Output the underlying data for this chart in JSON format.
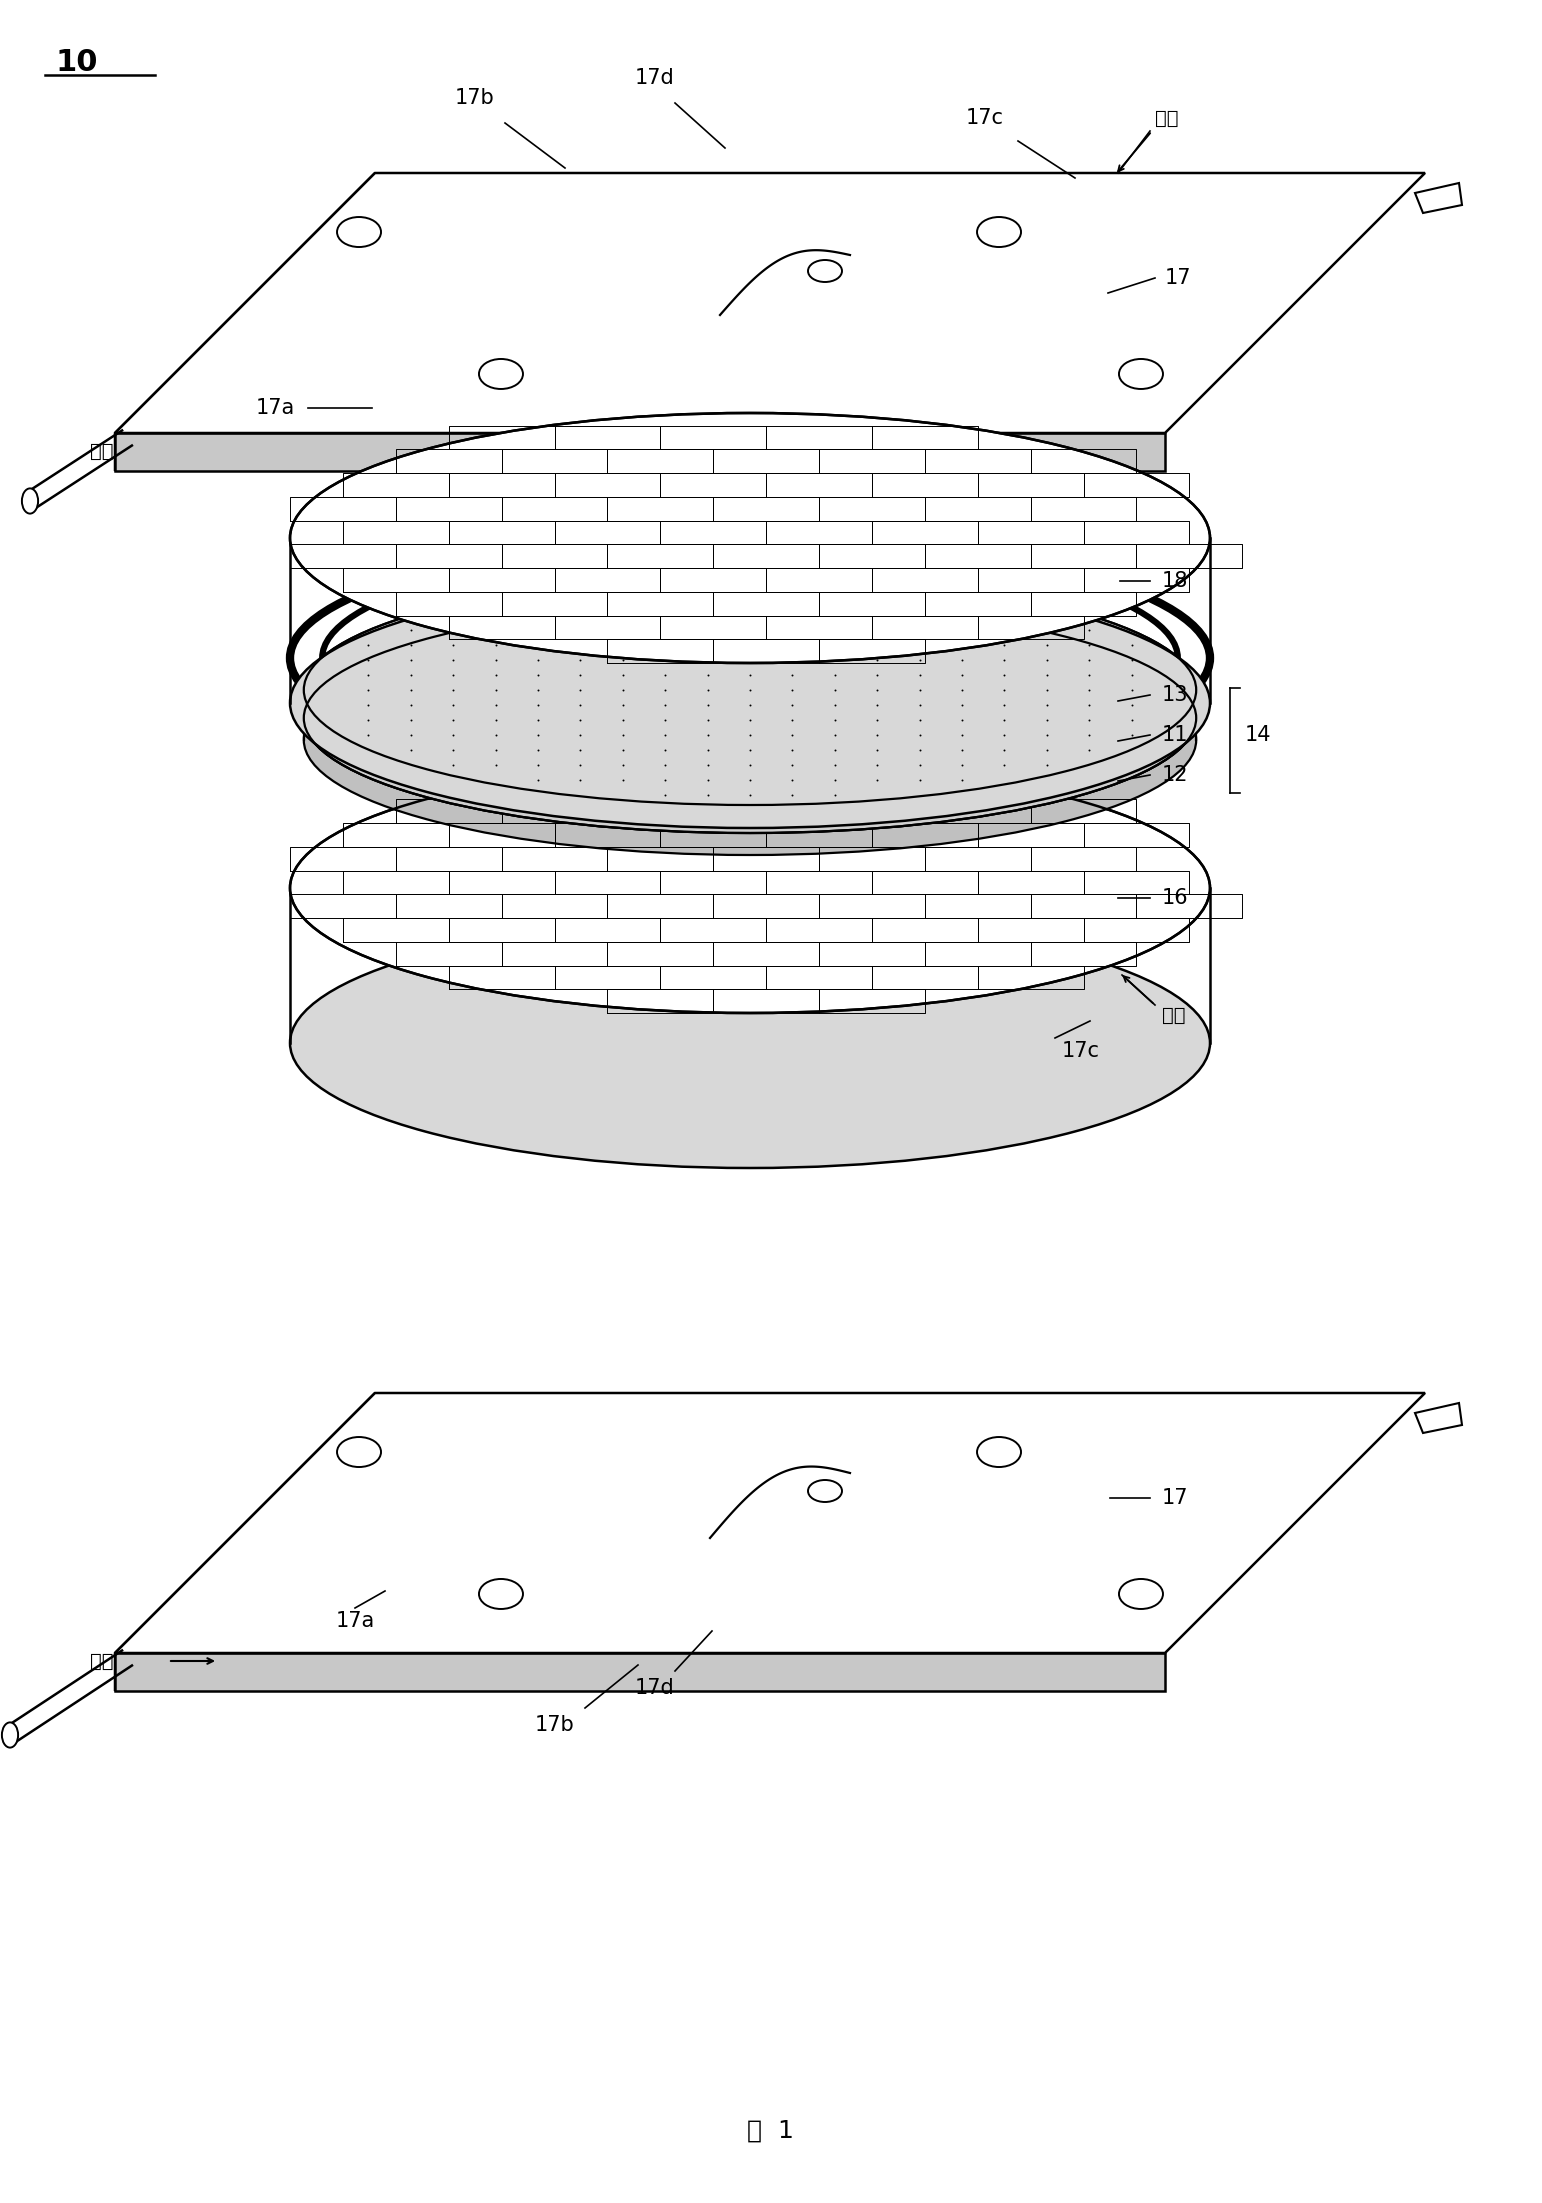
{
  "bg_color": "#ffffff",
  "line_color": "#000000",
  "label_10": "10",
  "figure_label": "图  1",
  "labels": {
    "17b_top": "17b",
    "17d_top": "17d",
    "17c_top": "17c",
    "fuel_top": "燃气",
    "17_top": "17",
    "17a_top": "17a",
    "air_top": "空气",
    "18": "18",
    "13": "13",
    "11": "11",
    "12": "12",
    "14": "14",
    "16": "16",
    "fuel_mid": "燃气",
    "17c_mid": "17c",
    "17_bot": "17",
    "17a_bot": "17a",
    "air_bot": "空气",
    "17d_bot": "17d",
    "17b_bot": "17b"
  },
  "font_size_labels": 14,
  "font_size_numbers": 15,
  "font_size_fig_label": 18
}
